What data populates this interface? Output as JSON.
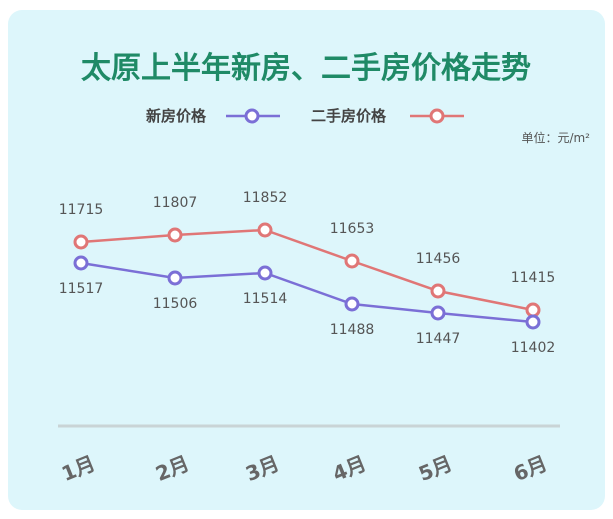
{
  "chart_data": {
    "type": "line",
    "title": "太原上半年新房、二手房价格走势",
    "unit_label": "单位：元/m²",
    "categories": [
      "1月",
      "2月",
      "3月",
      "4月",
      "5月",
      "6月"
    ],
    "series": [
      {
        "name": "新房价格",
        "values": [
          11517,
          11506,
          11514,
          11488,
          11447,
          11402
        ],
        "color": "#7b6fd6"
      },
      {
        "name": "二手房价格",
        "values": [
          11715,
          11807,
          11852,
          11653,
          11456,
          11415
        ],
        "color": "#e07676"
      }
    ],
    "legend_position": "top",
    "grid": false,
    "title_color": "#1f8a66"
  }
}
